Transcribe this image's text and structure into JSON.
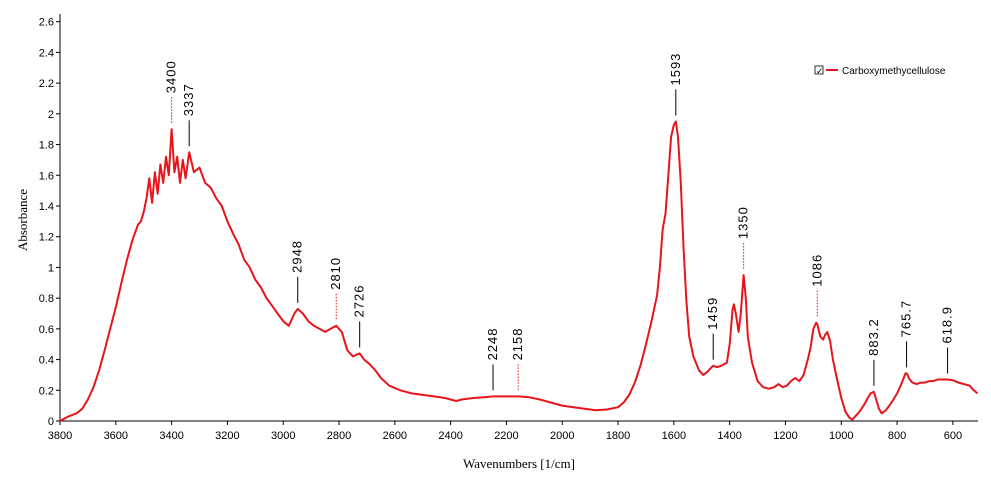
{
  "chart_data": {
    "type": "line",
    "xlabel": "Wavenumbers [1/cm]",
    "ylabel": "Absorbance",
    "xlim": [
      3800,
      510
    ],
    "ylim": [
      0,
      2.65
    ],
    "x_reversed": true,
    "x_ticks": [
      "3800",
      "3600",
      "3400",
      "3200",
      "3000",
      "2800",
      "2600",
      "2400",
      "2200",
      "2000",
      "1800",
      "1600",
      "1400",
      "1200",
      "1000",
      "800",
      "600"
    ],
    "y_ticks": [
      "0",
      "0.2",
      "0.4",
      "0.6",
      "0.8",
      "1",
      "1.2",
      "1.4",
      "1.6",
      "1.8",
      "2",
      "2.2",
      "2.4",
      "2.6"
    ],
    "legend": {
      "label": "Carboxymethycellulose",
      "checked": true,
      "position": "top-right",
      "check_mark": "✓"
    },
    "series": [
      {
        "name": "Carboxymethycellulose",
        "color": "#e8141c",
        "points": [
          [
            3800,
            0.0
          ],
          [
            3770,
            0.03
          ],
          [
            3740,
            0.05
          ],
          [
            3720,
            0.08
          ],
          [
            3700,
            0.14
          ],
          [
            3680,
            0.22
          ],
          [
            3660,
            0.33
          ],
          [
            3640,
            0.46
          ],
          [
            3620,
            0.6
          ],
          [
            3600,
            0.74
          ],
          [
            3580,
            0.9
          ],
          [
            3560,
            1.05
          ],
          [
            3540,
            1.18
          ],
          [
            3520,
            1.28
          ],
          [
            3510,
            1.3
          ],
          [
            3500,
            1.36
          ],
          [
            3490,
            1.45
          ],
          [
            3480,
            1.58
          ],
          [
            3470,
            1.42
          ],
          [
            3460,
            1.62
          ],
          [
            3450,
            1.48
          ],
          [
            3440,
            1.67
          ],
          [
            3430,
            1.55
          ],
          [
            3420,
            1.72
          ],
          [
            3410,
            1.6
          ],
          [
            3400,
            1.9
          ],
          [
            3390,
            1.62
          ],
          [
            3380,
            1.72
          ],
          [
            3370,
            1.55
          ],
          [
            3360,
            1.7
          ],
          [
            3350,
            1.58
          ],
          [
            3337,
            1.75
          ],
          [
            3320,
            1.62
          ],
          [
            3300,
            1.65
          ],
          [
            3280,
            1.55
          ],
          [
            3260,
            1.52
          ],
          [
            3240,
            1.45
          ],
          [
            3220,
            1.4
          ],
          [
            3200,
            1.3
          ],
          [
            3180,
            1.22
          ],
          [
            3160,
            1.15
          ],
          [
            3140,
            1.05
          ],
          [
            3120,
            1.0
          ],
          [
            3100,
            0.92
          ],
          [
            3080,
            0.87
          ],
          [
            3060,
            0.8
          ],
          [
            3040,
            0.75
          ],
          [
            3020,
            0.7
          ],
          [
            3000,
            0.65
          ],
          [
            2980,
            0.62
          ],
          [
            2960,
            0.7
          ],
          [
            2948,
            0.73
          ],
          [
            2930,
            0.7
          ],
          [
            2910,
            0.65
          ],
          [
            2890,
            0.62
          ],
          [
            2870,
            0.6
          ],
          [
            2850,
            0.58
          ],
          [
            2830,
            0.6
          ],
          [
            2810,
            0.62
          ],
          [
            2790,
            0.58
          ],
          [
            2770,
            0.46
          ],
          [
            2750,
            0.42
          ],
          [
            2740,
            0.43
          ],
          [
            2726,
            0.44
          ],
          [
            2710,
            0.4
          ],
          [
            2690,
            0.37
          ],
          [
            2670,
            0.33
          ],
          [
            2650,
            0.28
          ],
          [
            2620,
            0.23
          ],
          [
            2580,
            0.2
          ],
          [
            2540,
            0.18
          ],
          [
            2500,
            0.17
          ],
          [
            2460,
            0.16
          ],
          [
            2420,
            0.15
          ],
          [
            2400,
            0.14
          ],
          [
            2380,
            0.13
          ],
          [
            2360,
            0.14
          ],
          [
            2320,
            0.15
          ],
          [
            2280,
            0.155
          ],
          [
            2248,
            0.16
          ],
          [
            2200,
            0.16
          ],
          [
            2158,
            0.16
          ],
          [
            2120,
            0.155
          ],
          [
            2080,
            0.14
          ],
          [
            2040,
            0.12
          ],
          [
            2000,
            0.1
          ],
          [
            1960,
            0.09
          ],
          [
            1920,
            0.08
          ],
          [
            1880,
            0.07
          ],
          [
            1840,
            0.075
          ],
          [
            1800,
            0.09
          ],
          [
            1780,
            0.12
          ],
          [
            1760,
            0.17
          ],
          [
            1740,
            0.25
          ],
          [
            1720,
            0.36
          ],
          [
            1700,
            0.5
          ],
          [
            1680,
            0.65
          ],
          [
            1660,
            0.82
          ],
          [
            1650,
            1.0
          ],
          [
            1640,
            1.25
          ],
          [
            1630,
            1.35
          ],
          [
            1620,
            1.6
          ],
          [
            1610,
            1.85
          ],
          [
            1600,
            1.93
          ],
          [
            1593,
            1.95
          ],
          [
            1585,
            1.85
          ],
          [
            1575,
            1.55
          ],
          [
            1565,
            1.12
          ],
          [
            1555,
            0.78
          ],
          [
            1545,
            0.55
          ],
          [
            1530,
            0.42
          ],
          [
            1510,
            0.33
          ],
          [
            1495,
            0.3
          ],
          [
            1480,
            0.32
          ],
          [
            1470,
            0.34
          ],
          [
            1459,
            0.36
          ],
          [
            1445,
            0.35
          ],
          [
            1430,
            0.36
          ],
          [
            1410,
            0.38
          ],
          [
            1400,
            0.5
          ],
          [
            1390,
            0.72
          ],
          [
            1385,
            0.76
          ],
          [
            1378,
            0.7
          ],
          [
            1368,
            0.58
          ],
          [
            1360,
            0.7
          ],
          [
            1350,
            0.95
          ],
          [
            1342,
            0.8
          ],
          [
            1335,
            0.55
          ],
          [
            1320,
            0.38
          ],
          [
            1300,
            0.26
          ],
          [
            1280,
            0.22
          ],
          [
            1260,
            0.21
          ],
          [
            1240,
            0.22
          ],
          [
            1225,
            0.24
          ],
          [
            1210,
            0.22
          ],
          [
            1195,
            0.23
          ],
          [
            1180,
            0.26
          ],
          [
            1165,
            0.28
          ],
          [
            1150,
            0.26
          ],
          [
            1135,
            0.3
          ],
          [
            1120,
            0.4
          ],
          [
            1110,
            0.48
          ],
          [
            1100,
            0.6
          ],
          [
            1090,
            0.64
          ],
          [
            1086,
            0.63
          ],
          [
            1075,
            0.55
          ],
          [
            1065,
            0.53
          ],
          [
            1058,
            0.56
          ],
          [
            1050,
            0.58
          ],
          [
            1040,
            0.52
          ],
          [
            1030,
            0.4
          ],
          [
            1015,
            0.27
          ],
          [
            1000,
            0.15
          ],
          [
            985,
            0.06
          ],
          [
            970,
            0.02
          ],
          [
            960,
            0.01
          ],
          [
            950,
            0.03
          ],
          [
            935,
            0.06
          ],
          [
            920,
            0.1
          ],
          [
            905,
            0.15
          ],
          [
            895,
            0.18
          ],
          [
            883,
            0.19
          ],
          [
            875,
            0.14
          ],
          [
            865,
            0.08
          ],
          [
            855,
            0.05
          ],
          [
            840,
            0.07
          ],
          [
            820,
            0.12
          ],
          [
            800,
            0.18
          ],
          [
            785,
            0.24
          ],
          [
            770,
            0.31
          ],
          [
            765,
            0.31
          ],
          [
            755,
            0.27
          ],
          [
            745,
            0.25
          ],
          [
            730,
            0.24
          ],
          [
            715,
            0.25
          ],
          [
            700,
            0.25
          ],
          [
            685,
            0.26
          ],
          [
            670,
            0.26
          ],
          [
            655,
            0.27
          ],
          [
            640,
            0.27
          ],
          [
            619,
            0.27
          ],
          [
            600,
            0.265
          ],
          [
            580,
            0.25
          ],
          [
            560,
            0.24
          ],
          [
            540,
            0.23
          ],
          [
            525,
            0.2
          ],
          [
            512,
            0.18
          ]
        ]
      }
    ],
    "annotations": [
      {
        "label": "3400",
        "x": 3400,
        "y": 1.9,
        "line": "dotted"
      },
      {
        "label": "3337",
        "x": 3337,
        "y": 1.75,
        "line": "solid"
      },
      {
        "label": "2948",
        "x": 2948,
        "y": 0.73,
        "line": "solid"
      },
      {
        "label": "2810",
        "x": 2810,
        "y": 0.62,
        "line": "dotted"
      },
      {
        "label": "2726",
        "x": 2726,
        "y": 0.44,
        "line": "solid"
      },
      {
        "label": "2248",
        "x": 2248,
        "y": 0.16,
        "line": "solid"
      },
      {
        "label": "2158",
        "x": 2158,
        "y": 0.16,
        "line": "dotted"
      },
      {
        "label": "1593",
        "x": 1593,
        "y": 1.95,
        "line": "solid"
      },
      {
        "label": "1459",
        "x": 1459,
        "y": 0.36,
        "line": "solid"
      },
      {
        "label": "1350",
        "x": 1350,
        "y": 0.95,
        "line": "dotted"
      },
      {
        "label": "1086",
        "x": 1086,
        "y": 0.64,
        "line": "dotted"
      },
      {
        "label": "883.2",
        "x": 883,
        "y": 0.19,
        "line": "solid"
      },
      {
        "label": "765.7",
        "x": 766,
        "y": 0.31,
        "line": "solid"
      },
      {
        "label": "618.9",
        "x": 619,
        "y": 0.27,
        "line": "solid"
      }
    ]
  }
}
